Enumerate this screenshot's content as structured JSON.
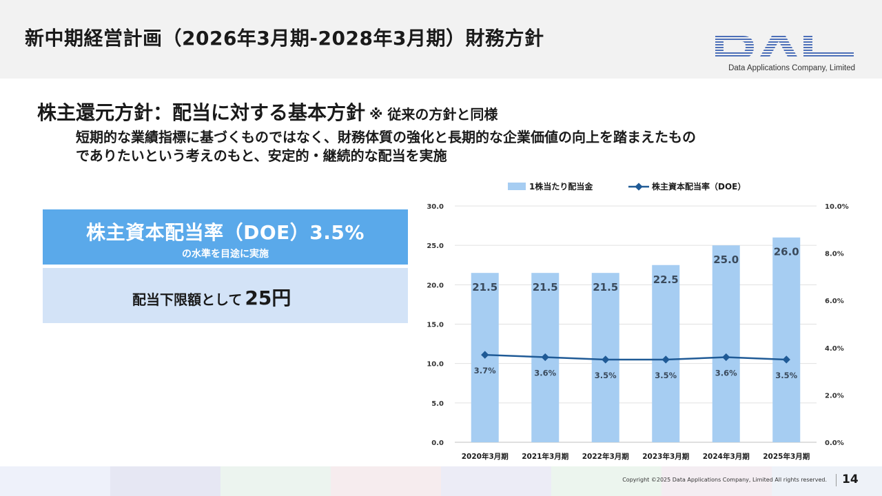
{
  "header": {
    "title": "新中期経営計画（2026年3月期-2028年3月期）財務方針",
    "logo_text": "DAL",
    "logo_company": "Data Applications Company, Limited"
  },
  "section": {
    "heading": "株主還元方針：配当に対する基本方針",
    "note": "※ 従来の方針と同様",
    "description_line1": "短期的な業績指標に基づくものではなく、財務体質の強化と長期的な企業価値の向上を踏まえたもの",
    "description_line2": "でありたいという考えのもと、安定的・継続的な配当を実施"
  },
  "boxes": {
    "doe_title": "株主資本配当率（DOE）3.5%",
    "doe_sub": "の水準を目途に実施",
    "floor_label": "配当下限額として",
    "floor_amount": "25円"
  },
  "colors": {
    "bar": "#a6cdf2",
    "line": "#1f5a96",
    "box_top": "#5aa9ea",
    "box_bottom": "#d3e3f7"
  },
  "chart_data": {
    "type": "bar",
    "categories": [
      "2020年3月期",
      "2021年3月期",
      "2022年3月期",
      "2023年3月期",
      "2024年3月期",
      "2025年3月期"
    ],
    "series": [
      {
        "name": "1株当たり配当金",
        "type": "bar",
        "axis": "left",
        "values": [
          21.5,
          21.5,
          21.5,
          22.5,
          25.0,
          26.0
        ],
        "labels": [
          "21.5",
          "21.5",
          "21.5",
          "22.5",
          "25.0",
          "26.0"
        ]
      },
      {
        "name": "株主資本配当率（DOE）",
        "type": "line",
        "axis": "right",
        "values": [
          3.7,
          3.6,
          3.5,
          3.5,
          3.6,
          3.5
        ],
        "labels": [
          "3.7%",
          "3.6%",
          "3.5%",
          "3.5%",
          "3.6%",
          "3.5%"
        ]
      }
    ],
    "y_left": {
      "range": [
        0,
        30
      ],
      "ticks": [
        "0.0",
        "5.0",
        "10.0",
        "15.0",
        "20.0",
        "25.0",
        "30.0"
      ]
    },
    "y_right": {
      "range": [
        0,
        10
      ],
      "ticks": [
        "0.0%",
        "2.0%",
        "4.0%",
        "6.0%",
        "8.0%",
        "10.0%"
      ]
    },
    "grid": true,
    "legend_position": "top"
  },
  "footer": {
    "copyright": "Copyright ©2025 Data Applications Company, Limited All rights reserved.",
    "page_number": "14",
    "band_colors": [
      "#eef1fa",
      "#e6e7f3",
      "#ecf4ef",
      "#f6ecee",
      "#ececf6",
      "#ecf5ee",
      "#f4edf2",
      "#eef2f8"
    ]
  }
}
